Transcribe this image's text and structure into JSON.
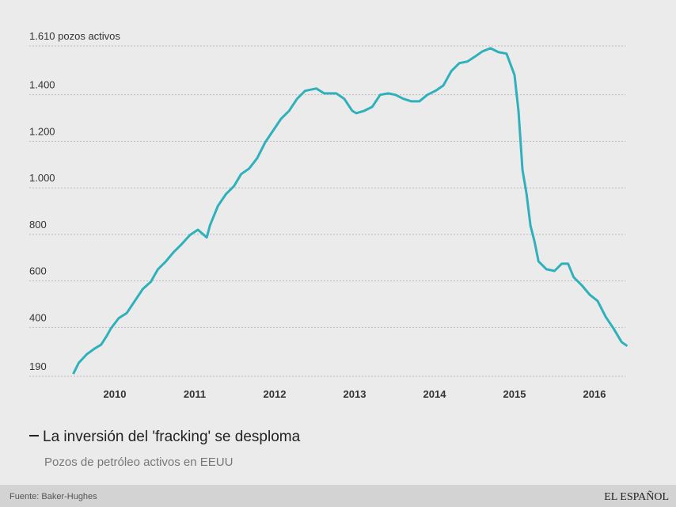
{
  "chart_data": {
    "type": "line",
    "title": "La inversión del 'fracking' se desploma",
    "subtitle": "Pozos de petróleo activos en EEUU",
    "source": "Fuente: Baker-Hughes",
    "brand": "EL ESPAÑOL",
    "x": [
      2009.48,
      2009.55,
      2009.65,
      2009.75,
      2009.83,
      2009.9,
      2009.95,
      2010.05,
      2010.15,
      2010.25,
      2010.35,
      2010.45,
      2010.54,
      2010.64,
      2010.74,
      2010.84,
      2010.94,
      2011.04,
      2011.15,
      2011.19,
      2011.29,
      2011.39,
      2011.49,
      2011.58,
      2011.68,
      2011.78,
      2011.88,
      2011.98,
      2012.08,
      2012.18,
      2012.28,
      2012.38,
      2012.52,
      2012.62,
      2012.77,
      2012.87,
      2012.97,
      2013.02,
      2013.12,
      2013.22,
      2013.32,
      2013.42,
      2013.51,
      2013.61,
      2013.71,
      2013.81,
      2013.91,
      2014.01,
      2014.11,
      2014.21,
      2014.31,
      2014.41,
      2014.5,
      2014.6,
      2014.7,
      2014.8,
      2014.9,
      2015.0,
      2015.05,
      2015.1,
      2015.15,
      2015.2,
      2015.25,
      2015.3,
      2015.4,
      2015.5,
      2015.59,
      2015.67,
      2015.74,
      2015.84,
      2015.94,
      2016.04,
      2016.14,
      2016.24,
      2016.34,
      2016.41
    ],
    "series": [
      {
        "name": "Pozos activos",
        "color": "#2fb1bb",
        "values": [
          200,
          248,
          285,
          310,
          326,
          364,
          395,
          440,
          462,
          514,
          565,
          596,
          650,
          684,
          725,
          759,
          797,
          820,
          787,
          838,
          922,
          973,
          1007,
          1059,
          1083,
          1127,
          1195,
          1246,
          1297,
          1331,
          1383,
          1417,
          1427,
          1406,
          1406,
          1383,
          1331,
          1321,
          1331,
          1348,
          1400,
          1406,
          1400,
          1383,
          1372,
          1372,
          1400,
          1417,
          1440,
          1502,
          1536,
          1543,
          1563,
          1587,
          1600,
          1583,
          1577,
          1485,
          1331,
          1076,
          974,
          837,
          769,
          684,
          650,
          643,
          674,
          674,
          616,
          582,
          541,
          514,
          446,
          395,
          337,
          320
        ]
      }
    ],
    "xlim": [
      2009,
      2016.5
    ],
    "xticks": [
      2010,
      2011,
      2012,
      2013,
      2014,
      2015,
      2016
    ],
    "ylim": [
      190,
      1610
    ],
    "yticks": [
      {
        "value": 190,
        "label": "190"
      },
      {
        "value": 400,
        "label": "400"
      },
      {
        "value": 600,
        "label": "600"
      },
      {
        "value": 800,
        "label": "800"
      },
      {
        "value": 1000,
        "label": "1.000"
      },
      {
        "value": 1200,
        "label": "1.200"
      },
      {
        "value": 1400,
        "label": "1.400"
      },
      {
        "value": 1610,
        "label": "1.610 pozos activos"
      }
    ],
    "grid": true
  }
}
